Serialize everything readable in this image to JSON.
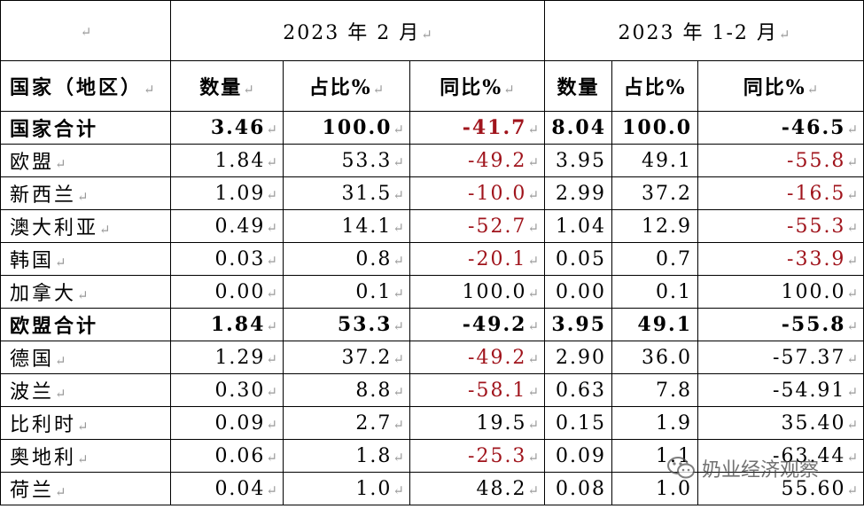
{
  "return_mark": "↵",
  "header": {
    "period1": "2023 年 2 月",
    "period2": "2023 年 1-2 月",
    "col_country": "国家（地区）",
    "col_qty": "数量",
    "col_share": "占比%",
    "col_yoy": "同比%"
  },
  "rows": [
    {
      "name": "国家合计",
      "bold": true,
      "v": [
        "3.46",
        "100.0",
        "-41.7",
        "8.04",
        "100.0",
        "-46.5"
      ],
      "red": [
        false,
        false,
        true,
        false,
        false,
        false
      ]
    },
    {
      "name": "欧盟",
      "bold": false,
      "v": [
        "1.84",
        "53.3",
        "-49.2",
        "3.95",
        "49.1",
        "-55.8"
      ],
      "red": [
        false,
        false,
        true,
        false,
        false,
        true
      ]
    },
    {
      "name": "新西兰",
      "bold": false,
      "v": [
        "1.09",
        "31.5",
        "-10.0",
        "2.99",
        "37.2",
        "-16.5"
      ],
      "red": [
        false,
        false,
        true,
        false,
        false,
        true
      ]
    },
    {
      "name": "澳大利亚",
      "bold": false,
      "v": [
        "0.49",
        "14.1",
        "-52.7",
        "1.04",
        "12.9",
        "-55.3"
      ],
      "red": [
        false,
        false,
        true,
        false,
        false,
        true
      ]
    },
    {
      "name": "韩国",
      "bold": false,
      "v": [
        "0.03",
        "0.8",
        "-20.1",
        "0.05",
        "0.7",
        "-33.9"
      ],
      "red": [
        false,
        false,
        true,
        false,
        false,
        true
      ]
    },
    {
      "name": "加拿大",
      "bold": false,
      "v": [
        "0.00",
        "0.1",
        "100.0",
        "0.00",
        "0.1",
        "100.0"
      ],
      "red": [
        false,
        false,
        false,
        false,
        false,
        false
      ]
    },
    {
      "name": "欧盟合计",
      "bold": true,
      "v": [
        "1.84",
        "53.3",
        "-49.2",
        "3.95",
        "49.1",
        "-55.8"
      ],
      "red": [
        false,
        false,
        false,
        false,
        false,
        false
      ]
    },
    {
      "name": "德国",
      "bold": false,
      "v": [
        "1.29",
        "37.2",
        "-49.2",
        "2.90",
        "36.0",
        "-57.37"
      ],
      "red": [
        false,
        false,
        true,
        false,
        false,
        false
      ]
    },
    {
      "name": "波兰",
      "bold": false,
      "v": [
        "0.30",
        "8.8",
        "-58.1",
        "0.63",
        "7.8",
        "-54.91"
      ],
      "red": [
        false,
        false,
        true,
        false,
        false,
        false
      ]
    },
    {
      "name": "比利时",
      "bold": false,
      "v": [
        "0.09",
        "2.7",
        "19.5",
        "0.15",
        "1.9",
        "35.40"
      ],
      "red": [
        false,
        false,
        false,
        false,
        false,
        false
      ]
    },
    {
      "name": "奥地利",
      "bold": false,
      "v": [
        "0.06",
        "1.8",
        "-25.3",
        "0.09",
        "1.1",
        "-63.44"
      ],
      "red": [
        false,
        false,
        true,
        false,
        false,
        false
      ]
    },
    {
      "name": "荷兰",
      "bold": false,
      "v": [
        "0.04",
        "1.0",
        "48.2",
        "0.08",
        "1.0",
        "55.60"
      ],
      "red": [
        false,
        false,
        false,
        false,
        false,
        false
      ]
    }
  ],
  "watermark": {
    "text": "奶业经济观察",
    "icon": "wechat-icon"
  }
}
